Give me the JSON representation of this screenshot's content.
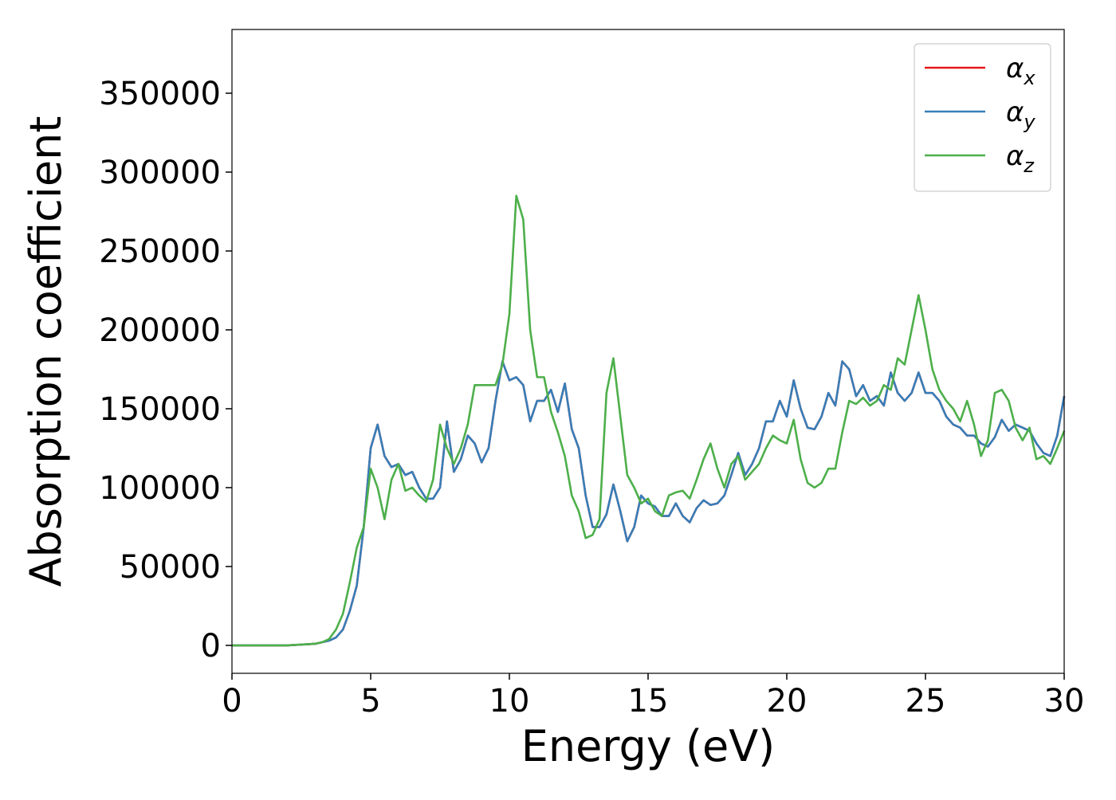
{
  "chart_data": {
    "type": "line",
    "xlabel": "Energy (eV)",
    "ylabel": "Absorption coefficient",
    "x": [
      0,
      1,
      2,
      3,
      3.25,
      3.5,
      3.75,
      4,
      4.25,
      4.5,
      4.75,
      5,
      5.25,
      5.5,
      5.75,
      6,
      6.25,
      6.5,
      6.75,
      7,
      7.25,
      7.5,
      7.75,
      8,
      8.25,
      8.5,
      8.75,
      9,
      9.25,
      9.5,
      9.75,
      10,
      10.25,
      10.5,
      10.75,
      11,
      11.25,
      11.5,
      11.75,
      12,
      12.25,
      12.5,
      12.75,
      13,
      13.25,
      13.5,
      13.75,
      14,
      14.25,
      14.5,
      14.75,
      15,
      15.25,
      15.5,
      15.75,
      16,
      16.25,
      16.5,
      16.75,
      17,
      17.25,
      17.5,
      17.75,
      18,
      18.25,
      18.5,
      18.75,
      19,
      19.25,
      19.5,
      19.75,
      20,
      20.25,
      20.5,
      20.75,
      21,
      21.25,
      21.5,
      21.75,
      22,
      22.25,
      22.5,
      22.75,
      23,
      23.25,
      23.5,
      23.75,
      24,
      24.25,
      24.5,
      24.75,
      25,
      25.25,
      25.5,
      25.75,
      26,
      26.25,
      26.5,
      26.75,
      27,
      27.25,
      27.5,
      27.75,
      28,
      28.25,
      28.5,
      28.75,
      29,
      29.25,
      29.5,
      29.75,
      30
    ],
    "series": [
      {
        "name": "αx",
        "color": "#e41a1c",
        "values": [
          0,
          0,
          0,
          1000,
          2000,
          3000,
          5000,
          10000,
          22000,
          38000,
          75000,
          125000,
          140000,
          120000,
          113000,
          115000,
          108000,
          110000,
          100000,
          93000,
          93000,
          100000,
          142000,
          110000,
          118000,
          133000,
          128000,
          116000,
          125000,
          155000,
          180000,
          168000,
          170000,
          165000,
          142000,
          155000,
          155000,
          162000,
          148000,
          166000,
          137000,
          125000,
          95000,
          75000,
          75000,
          83000,
          102000,
          85000,
          66000,
          75000,
          95000,
          90000,
          88000,
          82000,
          82000,
          90000,
          82000,
          78000,
          87000,
          92000,
          89000,
          90000,
          95000,
          108000,
          122000,
          108000,
          115000,
          125000,
          142000,
          142000,
          155000,
          145000,
          168000,
          150000,
          138000,
          137000,
          145000,
          160000,
          152000,
          180000,
          175000,
          158000,
          165000,
          155000,
          158000,
          152000,
          173000,
          160000,
          155000,
          160000,
          173000,
          160000,
          160000,
          155000,
          145000,
          140000,
          138000,
          133000,
          133000,
          128000,
          126000,
          132000,
          143000,
          136000,
          140000,
          138000,
          136000,
          128000,
          122000,
          120000,
          133000,
          158000
        ]
      },
      {
        "name": "αy",
        "color": "#377eb8",
        "values": [
          0,
          0,
          0,
          1000,
          2000,
          3000,
          5000,
          10000,
          22000,
          38000,
          75000,
          125000,
          140000,
          120000,
          113000,
          115000,
          108000,
          110000,
          100000,
          93000,
          93000,
          100000,
          142000,
          110000,
          118000,
          133000,
          128000,
          116000,
          125000,
          155000,
          180000,
          168000,
          170000,
          165000,
          142000,
          155000,
          155000,
          162000,
          148000,
          166000,
          137000,
          125000,
          95000,
          75000,
          75000,
          83000,
          102000,
          85000,
          66000,
          75000,
          95000,
          90000,
          88000,
          82000,
          82000,
          90000,
          82000,
          78000,
          87000,
          92000,
          89000,
          90000,
          95000,
          108000,
          122000,
          108000,
          115000,
          125000,
          142000,
          142000,
          155000,
          145000,
          168000,
          150000,
          138000,
          137000,
          145000,
          160000,
          152000,
          180000,
          175000,
          158000,
          165000,
          155000,
          158000,
          152000,
          173000,
          160000,
          155000,
          160000,
          173000,
          160000,
          160000,
          155000,
          145000,
          140000,
          138000,
          133000,
          133000,
          128000,
          126000,
          132000,
          143000,
          136000,
          140000,
          138000,
          136000,
          128000,
          122000,
          120000,
          133000,
          158000
        ]
      },
      {
        "name": "αz",
        "color": "#4daf4a",
        "values": [
          0,
          0,
          0,
          1000,
          2000,
          4000,
          10000,
          20000,
          40000,
          62000,
          75000,
          112000,
          100000,
          80000,
          105000,
          115000,
          98000,
          100000,
          95000,
          91000,
          105000,
          140000,
          125000,
          115000,
          125000,
          140000,
          165000,
          165000,
          165000,
          165000,
          178000,
          210000,
          285000,
          270000,
          200000,
          170000,
          170000,
          148000,
          135000,
          120000,
          95000,
          85000,
          68000,
          70000,
          80000,
          160000,
          182000,
          145000,
          108000,
          100000,
          90000,
          93000,
          85000,
          82000,
          95000,
          97000,
          98000,
          93000,
          105000,
          118000,
          128000,
          112000,
          100000,
          115000,
          120000,
          105000,
          110000,
          115000,
          125000,
          133000,
          130000,
          128000,
          143000,
          118000,
          103000,
          100000,
          103000,
          112000,
          112000,
          135000,
          155000,
          153000,
          157000,
          152000,
          155000,
          165000,
          162000,
          182000,
          178000,
          200000,
          222000,
          200000,
          175000,
          162000,
          155000,
          150000,
          142000,
          155000,
          140000,
          120000,
          130000,
          160000,
          162000,
          155000,
          138000,
          130000,
          138000,
          118000,
          120000,
          115000,
          125000,
          136000
        ]
      }
    ],
    "xlim": [
      0,
      30
    ],
    "xticks": [
      0,
      5,
      10,
      15,
      20,
      25,
      30
    ],
    "ylim": [
      -17700,
      390400
    ],
    "yticks": [
      0,
      50000,
      100000,
      150000,
      200000,
      250000,
      300000,
      350000
    ],
    "legend": "upper right"
  }
}
